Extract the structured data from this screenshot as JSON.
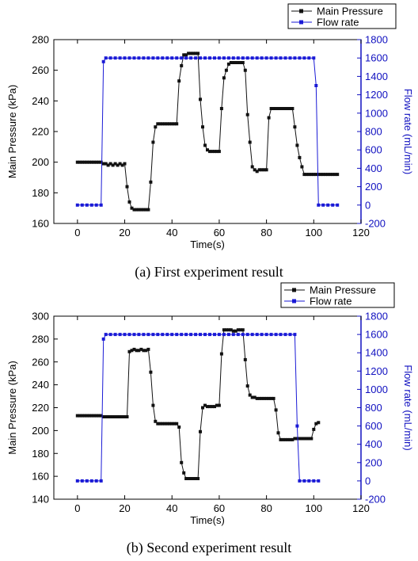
{
  "colors": {
    "pressure": "#111111",
    "flow": "#1a1ad6",
    "right_axis": "#1010c0"
  },
  "chart_data": [
    {
      "type": "line",
      "caption": "(a) First experiment result",
      "xlabel": "Time(s)",
      "ylabel": "Main Pressure (kPa)",
      "ylabel_right": "Flow rate (mL/min)",
      "xlim": [
        -10,
        120
      ],
      "xticks": [
        0,
        20,
        40,
        60,
        80,
        100,
        120
      ],
      "ylim": [
        160,
        280
      ],
      "yticks": [
        160,
        180,
        200,
        220,
        240,
        260,
        280
      ],
      "ylim_right": [
        -200,
        1800
      ],
      "yticks_right": [
        -200,
        0,
        200,
        400,
        600,
        800,
        1000,
        1200,
        1400,
        1600,
        1800
      ],
      "legend": [
        "Main Pressure",
        "Flow rate"
      ],
      "legend_position": "top-right",
      "series": [
        {
          "name": "Main Pressure",
          "axis": "left",
          "x": [
            0,
            1,
            2,
            3,
            4,
            5,
            6,
            7,
            8,
            9,
            10,
            11,
            12,
            13,
            14,
            15,
            16,
            17,
            18,
            19,
            20,
            21,
            22,
            23,
            24,
            25,
            26,
            27,
            28,
            29,
            30,
            31,
            32,
            33,
            34,
            35,
            36,
            37,
            38,
            39,
            40,
            41,
            42,
            43,
            44,
            45,
            46,
            47,
            48,
            49,
            50,
            51,
            52,
            53,
            54,
            55,
            56,
            57,
            58,
            59,
            60,
            61,
            62,
            63,
            64,
            65,
            66,
            67,
            68,
            69,
            70,
            71,
            72,
            73,
            74,
            75,
            76,
            77,
            78,
            79,
            80,
            81,
            82,
            83,
            84,
            85,
            86,
            87,
            88,
            89,
            90,
            91,
            92,
            93,
            94,
            95,
            96,
            97,
            98,
            99,
            100,
            101,
            102,
            103,
            104,
            105,
            106,
            107,
            108,
            109,
            110
          ],
          "y": [
            200,
            200,
            200,
            200,
            200,
            200,
            200,
            200,
            200,
            200,
            200,
            199,
            199,
            198,
            199,
            198,
            199,
            198,
            199,
            198,
            199,
            184,
            174,
            170,
            169,
            169,
            169,
            169,
            169,
            169,
            169,
            187,
            213,
            223,
            225,
            225,
            225,
            225,
            225,
            225,
            225,
            225,
            225,
            253,
            263,
            270,
            270,
            271,
            271,
            271,
            271,
            271,
            241,
            223,
            211,
            208,
            207,
            207,
            207,
            207,
            207,
            235,
            255,
            260,
            264,
            265,
            265,
            265,
            265,
            265,
            265,
            260,
            231,
            213,
            197,
            195,
            194,
            195,
            195,
            195,
            195,
            229,
            235,
            235,
            235,
            235,
            235,
            235,
            235,
            235,
            235,
            235,
            223,
            211,
            203,
            197,
            192,
            192,
            192,
            192,
            192,
            192,
            192,
            192,
            192,
            192,
            192,
            192,
            192,
            192,
            192
          ]
        },
        {
          "name": "Flow rate",
          "axis": "right",
          "x": [
            0,
            2,
            4,
            6,
            8,
            10,
            11,
            12,
            14,
            16,
            18,
            20,
            22,
            24,
            26,
            28,
            30,
            32,
            34,
            36,
            38,
            40,
            42,
            44,
            46,
            48,
            50,
            52,
            54,
            56,
            58,
            60,
            62,
            64,
            66,
            68,
            70,
            72,
            74,
            76,
            78,
            80,
            82,
            84,
            86,
            88,
            90,
            92,
            94,
            96,
            98,
            100,
            101,
            102,
            104,
            106,
            108,
            110
          ],
          "y": [
            0,
            0,
            0,
            0,
            0,
            0,
            1560,
            1600,
            1600,
            1600,
            1600,
            1600,
            1600,
            1600,
            1600,
            1600,
            1600,
            1600,
            1600,
            1600,
            1600,
            1600,
            1600,
            1600,
            1600,
            1600,
            1600,
            1600,
            1600,
            1600,
            1600,
            1600,
            1600,
            1600,
            1600,
            1600,
            1600,
            1600,
            1600,
            1600,
            1600,
            1600,
            1600,
            1600,
            1600,
            1600,
            1600,
            1600,
            1600,
            1600,
            1600,
            1600,
            1300,
            0,
            0,
            0,
            0,
            0
          ]
        }
      ]
    },
    {
      "type": "line",
      "caption": "(b) Second experiment result",
      "xlabel": "Time(s)",
      "ylabel": "Main Pressure (kPa)",
      "ylabel_right": "Flow rate (mL/min)",
      "xlim": [
        -10,
        120
      ],
      "xticks": [
        0,
        20,
        40,
        60,
        80,
        100,
        120
      ],
      "ylim": [
        140,
        300
      ],
      "yticks": [
        140,
        160,
        180,
        200,
        220,
        240,
        260,
        280,
        300
      ],
      "ylim_right": [
        -200,
        1800
      ],
      "yticks_right": [
        -200,
        0,
        200,
        400,
        600,
        800,
        1000,
        1200,
        1400,
        1600,
        1800
      ],
      "legend": [
        "Main Pressure",
        "Flow rate"
      ],
      "legend_position": "top-right",
      "series": [
        {
          "name": "Main Pressure",
          "axis": "left",
          "x": [
            0,
            1,
            2,
            3,
            4,
            5,
            6,
            7,
            8,
            9,
            10,
            11,
            12,
            13,
            14,
            15,
            16,
            17,
            18,
            19,
            20,
            21,
            22,
            23,
            24,
            25,
            26,
            27,
            28,
            29,
            30,
            31,
            32,
            33,
            34,
            35,
            36,
            37,
            38,
            39,
            40,
            41,
            42,
            43,
            44,
            45,
            46,
            47,
            48,
            49,
            50,
            51,
            52,
            53,
            54,
            55,
            56,
            57,
            58,
            59,
            60,
            61,
            62,
            63,
            64,
            65,
            66,
            67,
            68,
            69,
            70,
            71,
            72,
            73,
            74,
            75,
            76,
            77,
            78,
            79,
            80,
            81,
            82,
            83,
            84,
            85,
            86,
            87,
            88,
            89,
            90,
            91,
            92,
            93,
            94,
            95,
            96,
            97,
            98,
            99,
            100,
            101,
            102
          ],
          "y": [
            213,
            213,
            213,
            213,
            213,
            213,
            213,
            213,
            213,
            213,
            213,
            212,
            212,
            212,
            212,
            212,
            212,
            212,
            212,
            212,
            212,
            212,
            269,
            270,
            271,
            270,
            270,
            271,
            270,
            270,
            271,
            251,
            222,
            208,
            206,
            206,
            206,
            206,
            206,
            206,
            206,
            206,
            206,
            203,
            172,
            163,
            158,
            158,
            158,
            158,
            158,
            158,
            199,
            220,
            222,
            221,
            221,
            221,
            221,
            222,
            222,
            267,
            288,
            288,
            288,
            288,
            287,
            287,
            288,
            288,
            288,
            262,
            239,
            231,
            229,
            229,
            228,
            228,
            228,
            228,
            228,
            228,
            228,
            228,
            218,
            198,
            192,
            192,
            192,
            192,
            192,
            192,
            193,
            193,
            193,
            193,
            193,
            193,
            193,
            193,
            201,
            206,
            207
          ]
        },
        {
          "name": "Flow rate",
          "axis": "right",
          "x": [
            0,
            2,
            4,
            6,
            8,
            10,
            11,
            12,
            14,
            16,
            18,
            20,
            22,
            24,
            26,
            28,
            30,
            32,
            34,
            36,
            38,
            40,
            42,
            44,
            46,
            48,
            50,
            52,
            54,
            56,
            58,
            60,
            62,
            64,
            66,
            68,
            70,
            72,
            74,
            76,
            78,
            80,
            82,
            84,
            86,
            88,
            90,
            92,
            93,
            94,
            96,
            98,
            100,
            102
          ],
          "y": [
            0,
            0,
            0,
            0,
            0,
            0,
            1550,
            1600,
            1600,
            1600,
            1600,
            1600,
            1600,
            1600,
            1600,
            1600,
            1600,
            1600,
            1600,
            1600,
            1600,
            1600,
            1600,
            1600,
            1600,
            1600,
            1600,
            1600,
            1600,
            1600,
            1600,
            1600,
            1600,
            1600,
            1600,
            1600,
            1600,
            1600,
            1600,
            1600,
            1600,
            1600,
            1600,
            1600,
            1600,
            1600,
            1600,
            1600,
            600,
            0,
            0,
            0,
            0,
            0
          ]
        }
      ]
    }
  ]
}
